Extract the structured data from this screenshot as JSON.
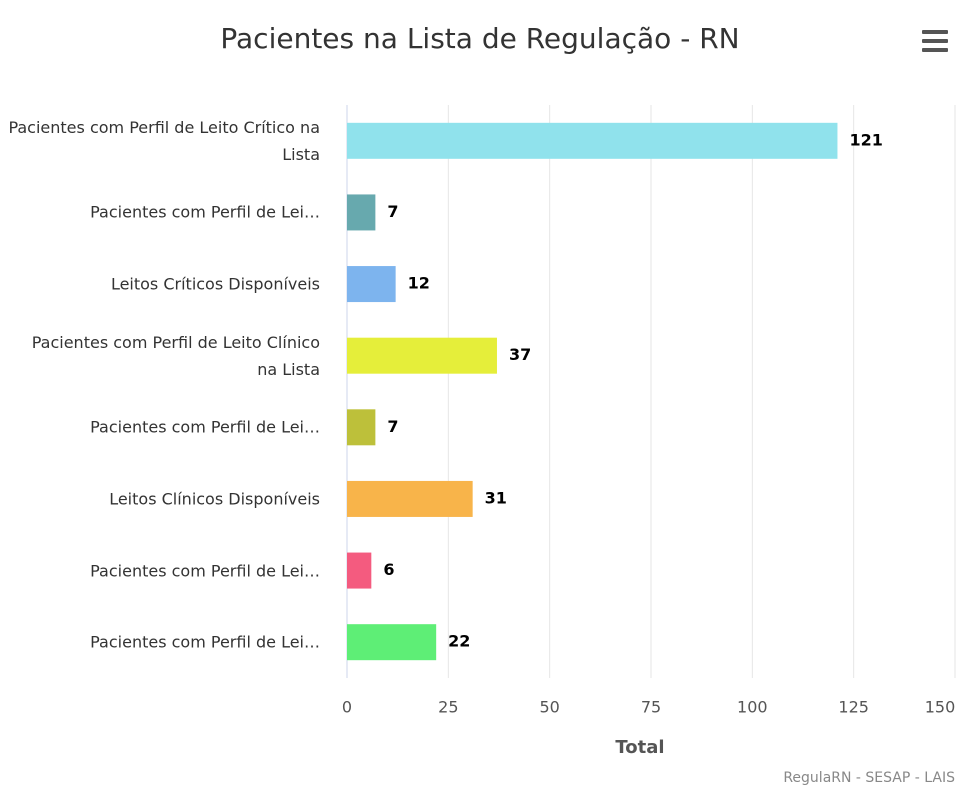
{
  "chart_data": {
    "type": "bar",
    "orientation": "horizontal",
    "title": "Pacientes na Lista de Regulação - RN",
    "categories": [
      "Pacientes com Perfil de Leito Crítico na Lista",
      "Pacientes com Perfil de Lei…",
      "Leitos Críticos Disponíveis",
      "Pacientes com Perfil de Leito Clínico na Lista",
      "Pacientes com Perfil de Lei…",
      "Leitos Clínicos Disponíveis",
      "Pacientes com Perfil de Lei…",
      "Pacientes com Perfil de Lei…"
    ],
    "values": [
      121,
      7,
      12,
      37,
      7,
      31,
      6,
      22
    ],
    "colors": [
      "#90e2ec",
      "#67a9ae",
      "#7db4ee",
      "#e5ee3a",
      "#bdc03a",
      "#f8b44a",
      "#f45b7f",
      "#5eee76"
    ],
    "xlim": [
      0,
      150
    ],
    "xticks": [
      0,
      25,
      50,
      75,
      100,
      125,
      150
    ],
    "xlabel": "Total",
    "credits": "RegulaRN - SESAP - LAIS",
    "grid": true
  }
}
